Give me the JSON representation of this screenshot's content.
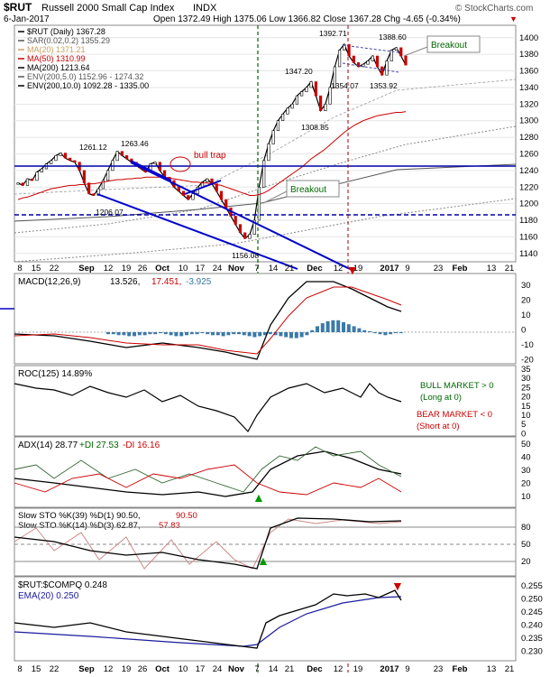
{
  "header": {
    "symbol": "$RUT",
    "name": "Russell 2000 Small Cap Index",
    "exchange": "INDX",
    "watermark": "© StockCharts.com",
    "date": "6-Jan-2017",
    "ohlc": "Open 1372.49  High 1375.06  Low 1366.82  Close 1367.28  Chg -4.65 (-0.34%)",
    "chg_arrow": "▼"
  },
  "legend_main": [
    {
      "text": "$RUT (Daily) 1367.28",
      "color": "#000000"
    },
    {
      "text": "SAR(0.02,0.2) 1355.29",
      "color": "#555555"
    },
    {
      "text": "MA(20) 1371.21",
      "color": "#c8a060"
    },
    {
      "text": "MA(50) 1310.99",
      "color": "#cc0000"
    },
    {
      "text": "MA(200) 1213.64",
      "color": "#000000"
    },
    {
      "text": "ENV(200,5.0) 1152.96 - 1274.32",
      "color": "#555555"
    },
    {
      "text": "ENV(200,10.0) 1092.28 - 1335.00",
      "color": "#000000"
    }
  ],
  "annotations": {
    "bull_trap": "bull trap",
    "breakout_top": "Breakout",
    "breakout_mid": "Breakout",
    "labels": [
      "1261.12",
      "1263.46",
      "1206.07",
      "1156.08",
      "1347.20",
      "1308.85",
      "1392.71",
      "1354.07",
      "1388.60",
      "1353.92"
    ]
  },
  "x_axis_labels": [
    "8",
    "15",
    "22",
    "Sep",
    "12",
    "19",
    "26",
    "Oct",
    "10",
    "17",
    "24",
    "Nov",
    "7",
    "14",
    "21",
    "Dec",
    "12",
    "19",
    "2017",
    "9",
    "23",
    "Feb",
    "13",
    "21"
  ],
  "panels": {
    "macd": {
      "label": "MACD(12,26,9)",
      "v1": "13.526,",
      "v2": "17.451,",
      "v3": "-3.925",
      "ticks": [
        "30",
        "20",
        "10",
        "0",
        "-10",
        "-20"
      ]
    },
    "roc": {
      "label": "ROC(125) 14.89%",
      "bull": "BULL MARKET > 0",
      "bull2": "(Long at 0)",
      "bear": "BEAR MARKET < 0",
      "bear2": "(Short at 0)",
      "ticks": [
        "35",
        "30",
        "25",
        "20",
        "15",
        "10",
        "5",
        "0"
      ]
    },
    "adx": {
      "label": "ADX(14) 28.77",
      "plus": "+DI 27.53",
      "minus": "-DI 16.16",
      "ticks": [
        "50",
        "40",
        "30",
        "20",
        "10"
      ]
    },
    "sto": {
      "label1": "Slow STO %K(39) %D(1) 90.50,",
      "label1b": "90.50",
      "label2": "Slow STO %K(14) %D(3) 62.87,",
      "label2b": "57.83",
      "ticks": [
        "80",
        "50",
        "20"
      ]
    },
    "ratio": {
      "label": "$RUT:$COMPQ 0.248",
      "ema": "EMA(20) 0.250",
      "ticks": [
        "0.255",
        "0.250",
        "0.245",
        "0.240",
        "0.235",
        "0.230"
      ]
    }
  },
  "chart_data": {
    "type": "line",
    "title": "$RUT Russell 2000 Small Cap Index INDX",
    "ylim": [
      1130,
      1415
    ],
    "price_ticks": [
      1140,
      1160,
      1180,
      1200,
      1220,
      1240,
      1260,
      1280,
      1300,
      1320,
      1340,
      1360,
      1380,
      1400
    ],
    "series": [
      {
        "name": "$RUT (Daily)",
        "values": [
          1225,
          1222,
          1230,
          1228,
          1238,
          1242,
          1248,
          1252,
          1258,
          1261,
          1255,
          1252,
          1250,
          1240,
          1225,
          1212,
          1210,
          1218,
          1228,
          1240,
          1252,
          1263,
          1258,
          1254,
          1250,
          1246,
          1242,
          1238,
          1248,
          1250,
          1240,
          1232,
          1228,
          1220,
          1215,
          1210,
          1205,
          1212,
          1220,
          1226,
          1230,
          1224,
          1215,
          1205,
          1195,
          1185,
          1175,
          1165,
          1158,
          1163,
          1180,
          1220,
          1252,
          1272,
          1288,
          1300,
          1308,
          1315,
          1320,
          1330,
          1335,
          1340,
          1347,
          1330,
          1312,
          1320,
          1340,
          1365,
          1385,
          1392,
          1378,
          1370,
          1365,
          1368,
          1372,
          1378,
          1365,
          1355,
          1372,
          1385,
          1388,
          1378,
          1367
        ]
      },
      {
        "name": "MA(50)",
        "values": [
          1205,
          1207,
          1208,
          1210,
          1212,
          1214,
          1216,
          1218,
          1219,
          1220,
          1221,
          1222,
          1222,
          1223,
          1223,
          1224,
          1224,
          1225,
          1226,
          1227,
          1228,
          1229,
          1229,
          1230,
          1230,
          1231,
          1231,
          1232,
          1232,
          1232,
          1232,
          1232,
          1231,
          1230,
          1229,
          1228,
          1227,
          1226,
          1226,
          1225,
          1225,
          1224,
          1223,
          1222,
          1220,
          1218,
          1216,
          1214,
          1212,
          1210,
          1210,
          1211,
          1213,
          1216,
          1220,
          1224,
          1228,
          1232,
          1236,
          1240,
          1244,
          1249,
          1254,
          1258,
          1262,
          1266,
          1271,
          1276,
          1281,
          1286,
          1290,
          1294,
          1297,
          1300,
          1302,
          1304,
          1306,
          1307,
          1308,
          1309,
          1310,
          1310,
          1311
        ]
      }
    ]
  }
}
